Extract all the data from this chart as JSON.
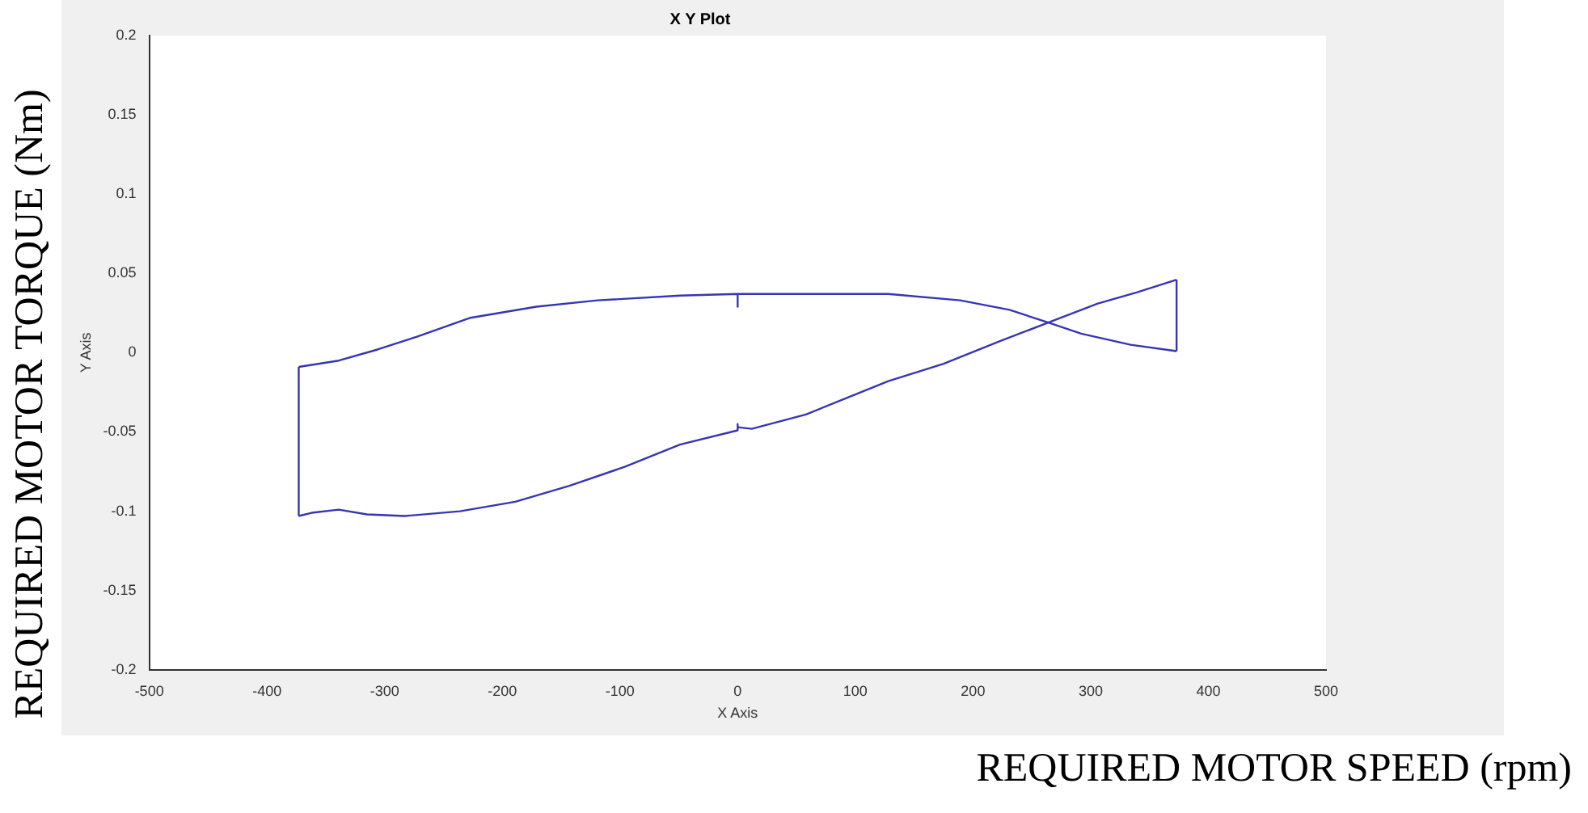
{
  "chart_data": {
    "type": "line",
    "title": "X Y Plot",
    "xlabel": "X Axis",
    "ylabel": "Y Axis",
    "annotations": [
      "REQUIRED MOTOR TORQUE (Nm)",
      "REQUIRED MOTOR SPEED (rpm)"
    ],
    "series": [
      {
        "color": "#3535b5",
        "x": [
          -373,
          -339,
          -306,
          -273,
          -227,
          -171,
          -119,
          -49,
          0,
          0,
          0,
          128,
          189,
          231,
          264,
          292,
          334,
          373
        ],
        "values": [
          -0.009,
          -0.005,
          0.002,
          0.01,
          0.022,
          0.029,
          0.033,
          0.036,
          0.037,
          0.029,
          0.037,
          0.037,
          0.033,
          0.027,
          0.019,
          0.012,
          0.005,
          0.001
        ]
      },
      {
        "color": "#3535b5",
        "x": [
          373,
          373
        ],
        "values": [
          0.001,
          0.046
        ]
      },
      {
        "color": "#3535b5",
        "x": [
          -373,
          -362,
          -339,
          -315,
          -283,
          -236,
          -189,
          -143,
          -96,
          -49,
          0,
          0,
          0,
          12,
          58,
          91,
          128,
          175,
          222,
          264,
          306,
          339,
          373
        ],
        "values": [
          -0.103,
          -0.101,
          -0.099,
          -0.102,
          -0.103,
          -0.1,
          -0.094,
          -0.084,
          -0.072,
          -0.058,
          -0.049,
          -0.045,
          -0.047,
          -0.048,
          -0.039,
          -0.029,
          -0.018,
          -0.007,
          0.007,
          0.019,
          0.031,
          0.038,
          0.046
        ]
      },
      {
        "color": "#3535b5",
        "x": [
          -373,
          -373
        ],
        "values": [
          -0.103,
          -0.009
        ]
      }
    ],
    "xlim": [
      -500,
      500
    ],
    "xticks": [
      -500,
      -400,
      -300,
      -200,
      -100,
      0,
      100,
      200,
      300,
      400,
      500
    ],
    "ylim": [
      -0.2,
      0.2
    ],
    "yticks": [
      -0.2,
      -0.15,
      -0.1,
      -0.05,
      0,
      0.05,
      0.1,
      0.15,
      0.2
    ],
    "grid": false,
    "legend": false,
    "marker": "none",
    "line_style": "solid"
  }
}
